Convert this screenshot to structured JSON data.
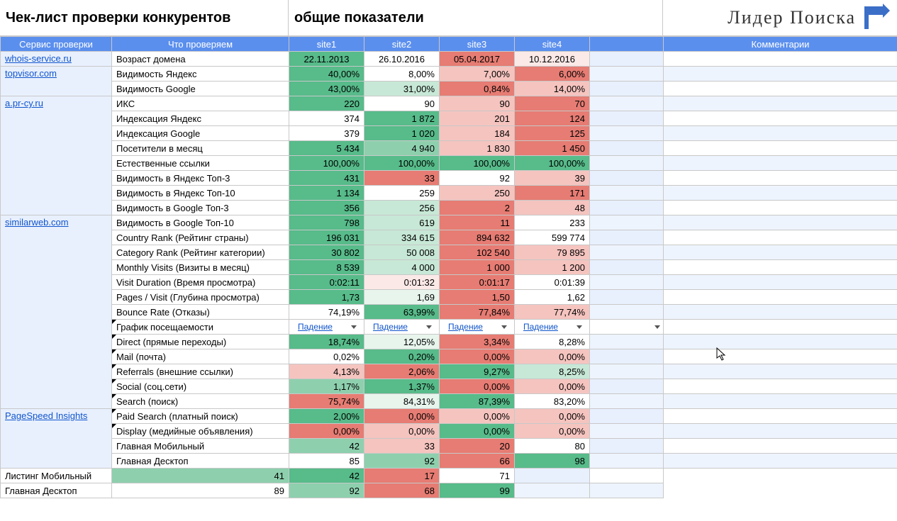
{
  "header": {
    "title_left": "Чек-лист проверки конкурентов",
    "title_mid": "общие показатели",
    "logo_text": "Лидер Поиска"
  },
  "columns": {
    "service": "Сервис проверки",
    "metric": "Что проверяем",
    "sites": [
      "site1",
      "site2",
      "site3",
      "site4"
    ],
    "comments": "Комментарии"
  },
  "col_widths": {
    "service": 157,
    "metric": 250,
    "site": 106,
    "extra": 104,
    "comment": 330
  },
  "colors": {
    "header_bg": "#5b8fee",
    "service_bg": "#e8f0fe",
    "link": "#1155cc",
    "green_dark": "#57bb8a",
    "green_mid": "#8ed0ae",
    "green_light": "#c7e8d6",
    "green_vlight": "#e7f5ed",
    "red_dark": "#e67c73",
    "red_mid": "#ed9e97",
    "red_light": "#f5c4bf",
    "red_vlight": "#fbe9e7",
    "white": "#ffffff"
  },
  "dropdown_label": "Падение",
  "services": [
    {
      "name": "whois-service.ru",
      "rowspan": 1
    },
    {
      "name": "topvisor.com",
      "rowspan": 2
    },
    {
      "name": "a.pr-cy.ru",
      "rowspan": 8
    },
    {
      "name": "similarweb.com",
      "rowspan": 13
    },
    {
      "name": "PageSpeed Insights",
      "rowspan": 4
    }
  ],
  "rows": [
    {
      "svc": 0,
      "metric": "Возраст домена",
      "cells": [
        {
          "v": "22.11.2013",
          "c": "green_dark",
          "align": "center"
        },
        {
          "v": "26.10.2016",
          "c": "white",
          "align": "center"
        },
        {
          "v": "05.04.2017",
          "c": "red_dark",
          "align": "center"
        },
        {
          "v": "10.12.2016",
          "c": "red_vlight",
          "align": "center"
        }
      ]
    },
    {
      "svc": 1,
      "metric": "Видимость Яндекс",
      "cells": [
        {
          "v": "40,00%",
          "c": "green_dark"
        },
        {
          "v": "8,00%",
          "c": "white"
        },
        {
          "v": "7,00%",
          "c": "red_light"
        },
        {
          "v": "6,00%",
          "c": "red_dark"
        }
      ]
    },
    {
      "svc": 1,
      "metric": "Видимость Google",
      "cells": [
        {
          "v": "43,00%",
          "c": "green_dark"
        },
        {
          "v": "31,00%",
          "c": "green_light"
        },
        {
          "v": "0,84%",
          "c": "red_dark"
        },
        {
          "v": "14,00%",
          "c": "red_light"
        }
      ]
    },
    {
      "svc": 2,
      "metric": "ИКС",
      "cells": [
        {
          "v": "220",
          "c": "green_dark"
        },
        {
          "v": "90",
          "c": "white"
        },
        {
          "v": "90",
          "c": "red_light"
        },
        {
          "v": "70",
          "c": "red_dark"
        }
      ]
    },
    {
      "svc": 2,
      "metric": "Индексация Яндекс",
      "cells": [
        {
          "v": "374",
          "c": "white"
        },
        {
          "v": "1 872",
          "c": "green_dark"
        },
        {
          "v": "201",
          "c": "red_light"
        },
        {
          "v": "124",
          "c": "red_dark"
        }
      ]
    },
    {
      "svc": 2,
      "metric": "Индексация Google",
      "cells": [
        {
          "v": "379",
          "c": "white"
        },
        {
          "v": "1 020",
          "c": "green_dark"
        },
        {
          "v": "184",
          "c": "red_light"
        },
        {
          "v": "125",
          "c": "red_dark"
        }
      ]
    },
    {
      "svc": 2,
      "metric": "Посетители в месяц",
      "cells": [
        {
          "v": "5 434",
          "c": "green_dark"
        },
        {
          "v": "4 940",
          "c": "green_mid"
        },
        {
          "v": "1 830",
          "c": "red_light"
        },
        {
          "v": "1 450",
          "c": "red_dark"
        }
      ]
    },
    {
      "svc": 2,
      "metric": "Естественные ссылки",
      "cells": [
        {
          "v": "100,00%",
          "c": "green_dark"
        },
        {
          "v": "100,00%",
          "c": "green_dark"
        },
        {
          "v": "100,00%",
          "c": "green_dark"
        },
        {
          "v": "100,00%",
          "c": "green_dark"
        }
      ]
    },
    {
      "svc": 2,
      "metric": "Видимость в Яндекс Топ-3",
      "cells": [
        {
          "v": "431",
          "c": "green_dark"
        },
        {
          "v": "33",
          "c": "red_dark"
        },
        {
          "v": "92",
          "c": "white"
        },
        {
          "v": "39",
          "c": "red_light"
        }
      ]
    },
    {
      "svc": 2,
      "metric": "Видимость в Яндекс Топ-10",
      "cells": [
        {
          "v": "1 134",
          "c": "green_dark"
        },
        {
          "v": "259",
          "c": "white"
        },
        {
          "v": "250",
          "c": "red_light"
        },
        {
          "v": "171",
          "c": "red_dark"
        }
      ]
    },
    {
      "svc": 2,
      "metric": "Видимость в Google Топ-3",
      "cells": [
        {
          "v": "356",
          "c": "green_dark"
        },
        {
          "v": "256",
          "c": "green_light"
        },
        {
          "v": "2",
          "c": "red_dark"
        },
        {
          "v": "48",
          "c": "red_light"
        }
      ]
    },
    {
      "svc": 2,
      "metric": "Видимость в Google Топ-10",
      "cells": [
        {
          "v": "798",
          "c": "green_dark"
        },
        {
          "v": "619",
          "c": "green_light"
        },
        {
          "v": "11",
          "c": "red_dark"
        },
        {
          "v": "233",
          "c": "white"
        }
      ]
    },
    {
      "svc": 3,
      "metric": "Country Rank (Рейтинг страны)",
      "cells": [
        {
          "v": "196 031",
          "c": "green_dark"
        },
        {
          "v": "334 615",
          "c": "green_light"
        },
        {
          "v": "894 632",
          "c": "red_dark"
        },
        {
          "v": "599 774",
          "c": "white"
        }
      ]
    },
    {
      "svc": 3,
      "metric": "Category Rank (Рейтинг категории)",
      "cells": [
        {
          "v": "30 802",
          "c": "green_dark"
        },
        {
          "v": "50 008",
          "c": "green_light"
        },
        {
          "v": "102 540",
          "c": "red_dark"
        },
        {
          "v": "79 895",
          "c": "red_light"
        }
      ]
    },
    {
      "svc": 3,
      "metric": "Monthly Visits (Визиты в месяц)",
      "cells": [
        {
          "v": "8 539",
          "c": "green_dark"
        },
        {
          "v": "4 000",
          "c": "green_light"
        },
        {
          "v": "1 000",
          "c": "red_dark"
        },
        {
          "v": "1 200",
          "c": "red_light"
        }
      ]
    },
    {
      "svc": 3,
      "metric": "Visit Duration (Время просмотра)",
      "cells": [
        {
          "v": "0:02:11",
          "c": "green_dark"
        },
        {
          "v": "0:01:32",
          "c": "red_vlight"
        },
        {
          "v": "0:01:17",
          "c": "red_dark"
        },
        {
          "v": "0:01:39",
          "c": "white"
        }
      ]
    },
    {
      "svc": 3,
      "metric": "Pages / Visit (Глубина просмотра)",
      "cells": [
        {
          "v": "1,73",
          "c": "green_dark"
        },
        {
          "v": "1,69",
          "c": "green_vlight"
        },
        {
          "v": "1,50",
          "c": "red_dark"
        },
        {
          "v": "1,62",
          "c": "white"
        }
      ]
    },
    {
      "svc": 3,
      "metric": "Bounce Rate (Отказы)",
      "cells": [
        {
          "v": "74,19%",
          "c": "white"
        },
        {
          "v": "63,99%",
          "c": "green_dark"
        },
        {
          "v": "77,84%",
          "c": "red_dark"
        },
        {
          "v": "77,74%",
          "c": "red_light"
        }
      ]
    },
    {
      "svc": 3,
      "metric": "График посещаемости",
      "dropdown": true,
      "note": true
    },
    {
      "svc": 3,
      "metric": "Direct (прямые переходы)",
      "note": true,
      "cells": [
        {
          "v": "18,74%",
          "c": "green_dark"
        },
        {
          "v": "12,05%",
          "c": "green_vlight"
        },
        {
          "v": "3,34%",
          "c": "red_dark"
        },
        {
          "v": "8,28%",
          "c": "white"
        }
      ]
    },
    {
      "svc": 3,
      "metric": "Mail (почта)",
      "note": true,
      "cells": [
        {
          "v": "0,02%",
          "c": "white"
        },
        {
          "v": "0,20%",
          "c": "green_dark"
        },
        {
          "v": "0,00%",
          "c": "red_dark"
        },
        {
          "v": "0,00%",
          "c": "red_light"
        }
      ]
    },
    {
      "svc": 3,
      "metric": "Referrals (внешние ссылки)",
      "note": true,
      "cells": [
        {
          "v": "4,13%",
          "c": "red_light"
        },
        {
          "v": "2,06%",
          "c": "red_dark"
        },
        {
          "v": "9,27%",
          "c": "green_dark"
        },
        {
          "v": "8,25%",
          "c": "green_light"
        }
      ]
    },
    {
      "svc": 3,
      "metric": "Social (соц.сети)",
      "note": true,
      "cells": [
        {
          "v": "1,17%",
          "c": "green_mid"
        },
        {
          "v": "1,37%",
          "c": "green_dark"
        },
        {
          "v": "0,00%",
          "c": "red_dark"
        },
        {
          "v": "0,00%",
          "c": "red_light"
        }
      ]
    },
    {
      "svc": 3,
      "metric": "Search (поиск)",
      "note": true,
      "cells": [
        {
          "v": "75,74%",
          "c": "red_dark"
        },
        {
          "v": "84,31%",
          "c": "green_vlight"
        },
        {
          "v": "87,39%",
          "c": "green_dark"
        },
        {
          "v": "83,20%",
          "c": "white"
        }
      ]
    },
    {
      "svc": 3,
      "metric": "Paid Search (платный поиск)",
      "note": true,
      "cells": [
        {
          "v": "2,00%",
          "c": "green_dark"
        },
        {
          "v": "0,00%",
          "c": "red_dark"
        },
        {
          "v": "0,00%",
          "c": "red_light"
        },
        {
          "v": "0,00%",
          "c": "red_light"
        }
      ]
    },
    {
      "svc": 3,
      "metric": "Display (медийные объявления)",
      "note": true,
      "cells": [
        {
          "v": "0,00%",
          "c": "red_dark"
        },
        {
          "v": "0,00%",
          "c": "red_light"
        },
        {
          "v": "0,00%",
          "c": "green_dark"
        },
        {
          "v": "0,00%",
          "c": "red_light"
        }
      ]
    },
    {
      "svc": 4,
      "metric": "Главная Мобильный",
      "cells": [
        {
          "v": "42",
          "c": "green_mid"
        },
        {
          "v": "33",
          "c": "red_light"
        },
        {
          "v": "20",
          "c": "red_dark"
        },
        {
          "v": "80",
          "c": "white"
        }
      ]
    },
    {
      "svc": 4,
      "metric": "Главная Десктоп",
      "cells": [
        {
          "v": "85",
          "c": "white"
        },
        {
          "v": "92",
          "c": "green_mid"
        },
        {
          "v": "66",
          "c": "red_dark"
        },
        {
          "v": "98",
          "c": "green_dark"
        }
      ]
    },
    {
      "svc": 4,
      "metric": "Листинг Мобильный",
      "cells": [
        {
          "v": "41",
          "c": "green_mid"
        },
        {
          "v": "42",
          "c": "green_dark"
        },
        {
          "v": "17",
          "c": "red_dark"
        },
        {
          "v": "71",
          "c": "white"
        }
      ]
    },
    {
      "svc": 4,
      "metric": "Главная Десктоп",
      "cells": [
        {
          "v": "89",
          "c": "white"
        },
        {
          "v": "92",
          "c": "green_mid"
        },
        {
          "v": "68",
          "c": "red_dark"
        },
        {
          "v": "99",
          "c": "green_dark"
        }
      ]
    }
  ]
}
